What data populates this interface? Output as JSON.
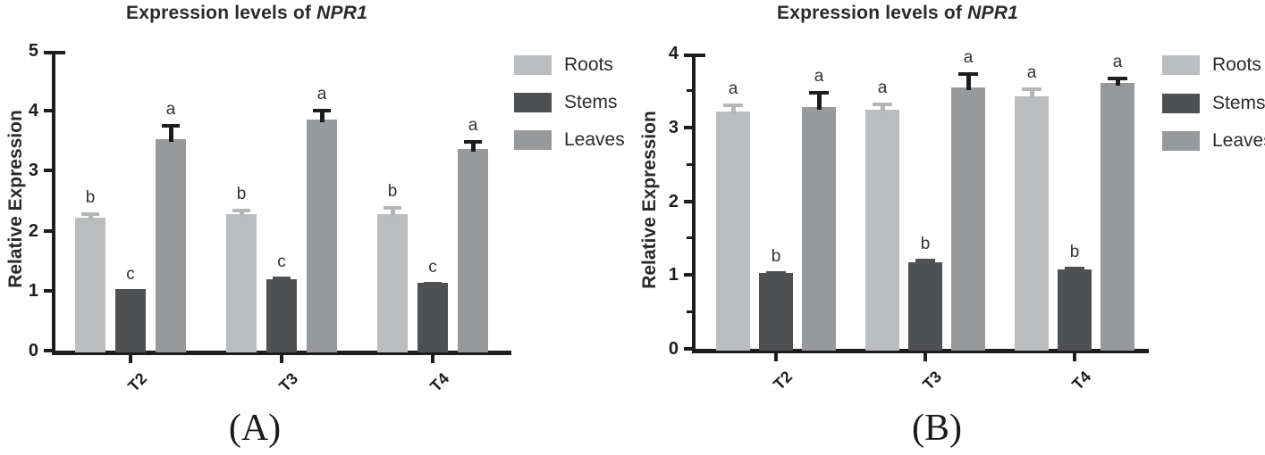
{
  "figure_type": "two-panel grouped bar chart",
  "chart_data": [
    {
      "panel": "A",
      "type": "bar",
      "title_prefix": "Expression levels of ",
      "title_gene": "NPR1",
      "xlabel": "",
      "ylabel": "Relative Expression",
      "panel_label": "(A)",
      "categories": [
        "T2",
        "T3",
        "T4"
      ],
      "ylim": [
        0,
        5
      ],
      "yticks": [
        0,
        1,
        2,
        3,
        4,
        5
      ],
      "minor_ticks": false,
      "legend_position": "right-top",
      "grid": false,
      "series": [
        {
          "name": "Roots",
          "color": "#bbbdbf",
          "error_color": "#b4b6b8",
          "values": [
            2.22,
            2.27,
            2.28
          ],
          "errors": [
            0.08,
            0.09,
            0.13
          ],
          "letters": [
            "b",
            "b",
            "b"
          ]
        },
        {
          "name": "Stems",
          "color": "#4f5052",
          "error_color": "#4f5052",
          "values": [
            1.03,
            1.19,
            1.13
          ],
          "errors": [
            0.0,
            0.04,
            0.02
          ],
          "letters": [
            "c",
            "c",
            "c"
          ]
        },
        {
          "name": "Leaves",
          "color": "#97999b",
          "error_color": "#1d1d1f",
          "values": [
            3.52,
            3.85,
            3.36
          ],
          "errors": [
            0.26,
            0.18,
            0.15
          ],
          "letters": [
            "a",
            "a",
            "a"
          ]
        }
      ]
    },
    {
      "panel": "B",
      "type": "bar",
      "title_prefix": "Expression levels of ",
      "title_gene": "NPR1",
      "xlabel": "",
      "ylabel": "Relative Expression",
      "panel_label": "(B)",
      "categories": [
        "T2",
        "T3",
        "T4"
      ],
      "ylim": [
        0,
        4
      ],
      "yticks": [
        0,
        1,
        2,
        3,
        4
      ],
      "minor_ticks": true,
      "minor_tick_step": 0.5,
      "legend_position": "right-top",
      "grid": false,
      "series": [
        {
          "name": "Roots",
          "color": "#bbbdbf",
          "error_color": "#b4b6b8",
          "values": [
            3.22,
            3.24,
            3.42
          ],
          "errors": [
            0.1,
            0.1,
            0.12
          ],
          "letters": [
            "a",
            "a",
            "a"
          ]
        },
        {
          "name": "Stems",
          "color": "#4f5052",
          "error_color": "#4f5052",
          "values": [
            1.03,
            1.17,
            1.07
          ],
          "errors": [
            0.02,
            0.05,
            0.04
          ],
          "letters": [
            "b",
            "b",
            "b"
          ]
        },
        {
          "name": "Leaves",
          "color": "#97999b",
          "error_color": "#1d1d1f",
          "values": [
            3.27,
            3.54,
            3.6
          ],
          "errors": [
            0.22,
            0.21,
            0.08
          ],
          "letters": [
            "a",
            "a",
            "a"
          ]
        }
      ]
    }
  ]
}
